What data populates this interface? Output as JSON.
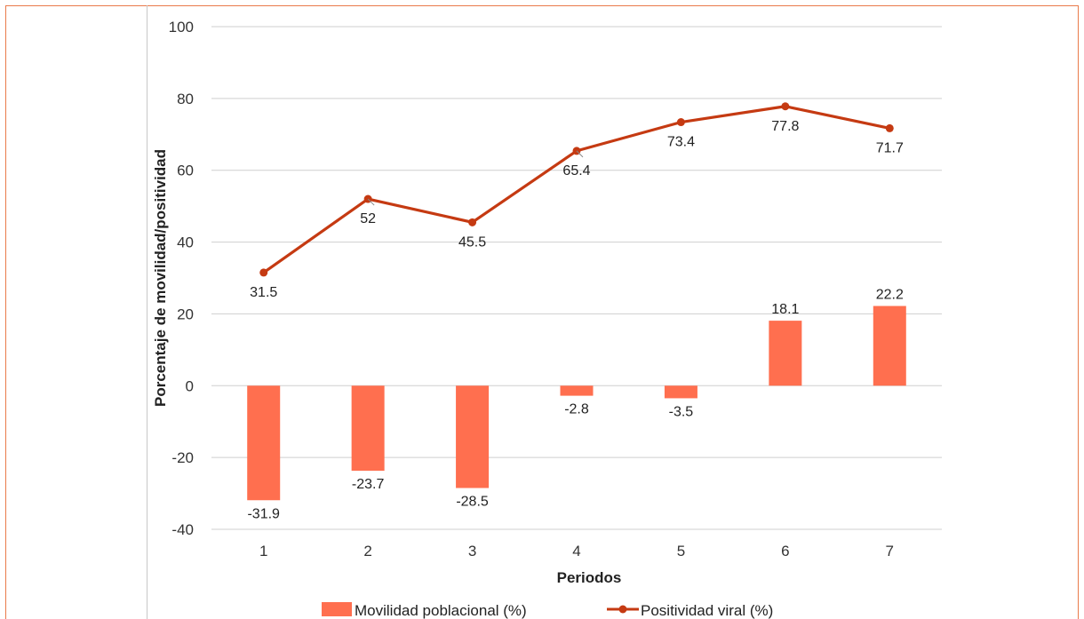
{
  "chart_data": {
    "type": "bar+line",
    "categories": [
      "1",
      "2",
      "3",
      "4",
      "5",
      "6",
      "7"
    ],
    "xlabel": "Periodos",
    "ylabel": "Porcentaje de movilidad/positividad",
    "ylim": [
      -40,
      100
    ],
    "yticks": [
      "-40",
      "-20",
      "0",
      "20",
      "40",
      "60",
      "80",
      "100"
    ],
    "grid": true,
    "legend_position": "bottom",
    "series": [
      {
        "name": "Movilidad poblacional (%)",
        "type": "bar",
        "color": "#ff6f4f",
        "values": [
          -31.9,
          -23.7,
          -28.5,
          -2.8,
          -3.5,
          18.1,
          22.2
        ],
        "labels": [
          "-31.9",
          "-23.7",
          "-28.5",
          "-2.8",
          "-3.5",
          "18.1",
          "22.2"
        ]
      },
      {
        "name": "Positividad viral (%)",
        "type": "line",
        "color": "#c53a12",
        "values": [
          31.5,
          52,
          45.5,
          65.4,
          73.4,
          77.8,
          71.7
        ],
        "labels": [
          "31.5",
          "52",
          "45.5",
          "65.4",
          "73.4",
          "77.8",
          "71.7"
        ]
      }
    ]
  }
}
